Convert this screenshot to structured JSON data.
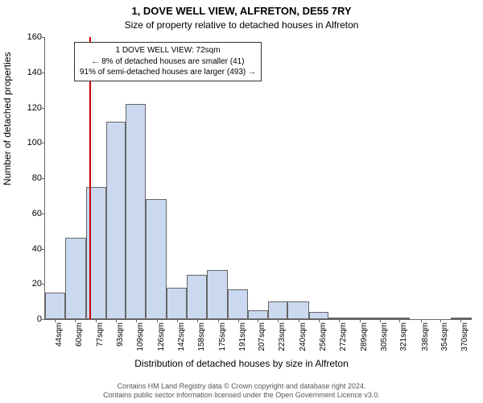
{
  "title_main": "1, DOVE WELL VIEW, ALFRETON, DE55 7RY",
  "title_sub": "Size of property relative to detached houses in Alfreton",
  "ylabel": "Number of detached properties",
  "xlabel": "Distribution of detached houses by size in Alfreton",
  "footer_line1": "Contains HM Land Registry data © Crown copyright and database right 2024.",
  "footer_line2": "Contains public sector information licensed under the Open Government Licence v3.0.",
  "annotation": {
    "line1": "1 DOVE WELL VIEW: 72sqm",
    "line2": "← 8% of detached houses are smaller (41)",
    "line3": "91% of semi-detached houses are larger (493) →"
  },
  "chart": {
    "type": "histogram",
    "ylim": [
      0,
      160
    ],
    "ytick_step": 20,
    "bar_color": "#cad9f0",
    "bar_border": "#666666",
    "redline_color": "#cc0000",
    "redline_value": 72,
    "background_color": "#ffffff",
    "title_fontsize": 13,
    "label_fontsize": 12,
    "tick_fontsize": 10,
    "x_ticks": [
      44,
      60,
      77,
      93,
      109,
      126,
      142,
      158,
      175,
      191,
      207,
      223,
      240,
      256,
      272,
      289,
      305,
      321,
      338,
      354,
      370
    ],
    "x_min": 36,
    "x_max": 379,
    "x_unit_suffix": "sqm",
    "bins": [
      {
        "start": 36,
        "end": 52,
        "count": 15
      },
      {
        "start": 52,
        "end": 69,
        "count": 46
      },
      {
        "start": 69,
        "end": 85,
        "count": 75
      },
      {
        "start": 85,
        "end": 101,
        "count": 112
      },
      {
        "start": 101,
        "end": 117,
        "count": 122
      },
      {
        "start": 117,
        "end": 134,
        "count": 68
      },
      {
        "start": 134,
        "end": 150,
        "count": 18
      },
      {
        "start": 150,
        "end": 166,
        "count": 25
      },
      {
        "start": 166,
        "end": 183,
        "count": 28
      },
      {
        "start": 183,
        "end": 199,
        "count": 17
      },
      {
        "start": 199,
        "end": 215,
        "count": 5
      },
      {
        "start": 215,
        "end": 231,
        "count": 10
      },
      {
        "start": 231,
        "end": 248,
        "count": 10
      },
      {
        "start": 248,
        "end": 264,
        "count": 4
      },
      {
        "start": 264,
        "end": 280,
        "count": 1
      },
      {
        "start": 280,
        "end": 297,
        "count": 1
      },
      {
        "start": 297,
        "end": 313,
        "count": 1
      },
      {
        "start": 313,
        "end": 329,
        "count": 1
      },
      {
        "start": 329,
        "end": 346,
        "count": 0
      },
      {
        "start": 346,
        "end": 362,
        "count": 0
      },
      {
        "start": 362,
        "end": 379,
        "count": 1
      }
    ]
  }
}
